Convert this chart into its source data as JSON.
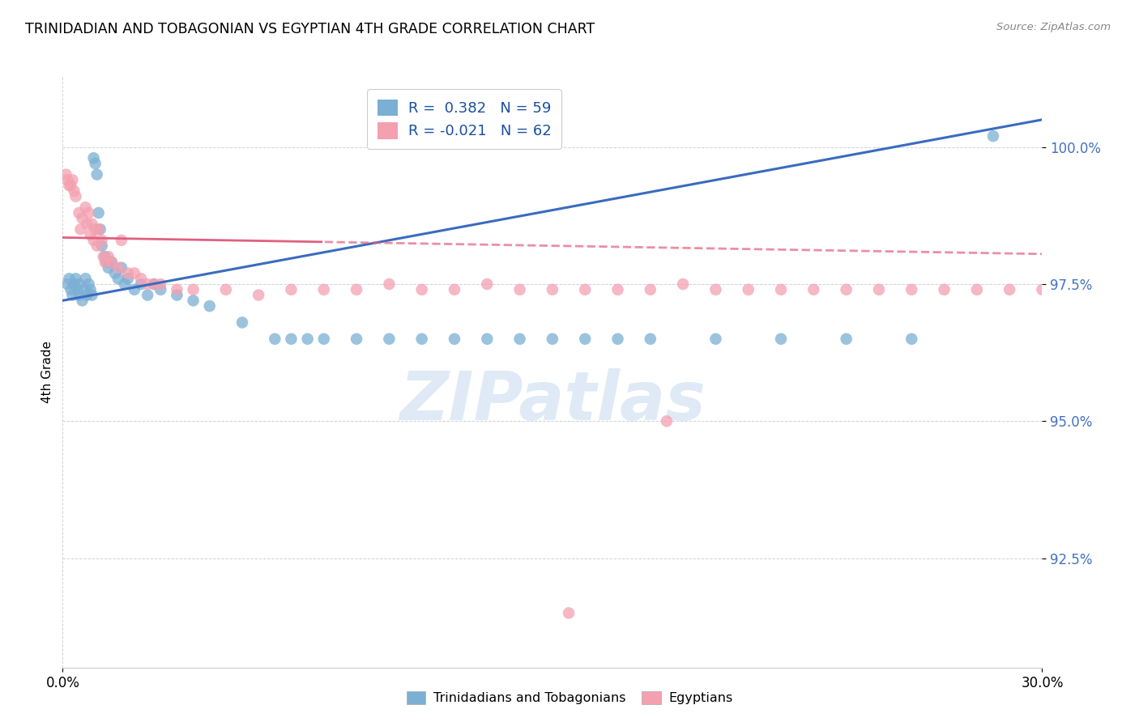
{
  "title": "TRINIDADIAN AND TOBAGONIAN VS EGYPTIAN 4TH GRADE CORRELATION CHART",
  "source": "Source: ZipAtlas.com",
  "ylabel": "4th Grade",
  "xmin": 0.0,
  "xmax": 30.0,
  "ymin": 90.5,
  "ymax": 101.3,
  "legend_r_blue": "R =  0.382",
  "legend_n_blue": "N = 59",
  "legend_r_pink": "R = -0.021",
  "legend_n_pink": "N = 62",
  "blue_color": "#7bafd4",
  "pink_color": "#f4a0b0",
  "blue_line_color": "#3a6bbf",
  "pink_line_color": "#e06080",
  "watermark_color": "#dce8f5",
  "blue_scatter_x": [
    0.15,
    0.2,
    0.25,
    0.3,
    0.35,
    0.4,
    0.45,
    0.5,
    0.5,
    0.6,
    0.65,
    0.7,
    0.75,
    0.8,
    0.85,
    0.9,
    0.95,
    1.0,
    1.05,
    1.1,
    1.15,
    1.2,
    1.3,
    1.35,
    1.4,
    1.5,
    1.6,
    1.7,
    1.8,
    1.9,
    2.0,
    2.2,
    2.4,
    2.6,
    2.8,
    3.0,
    3.5,
    4.0,
    4.5,
    5.5,
    6.5,
    7.0,
    7.5,
    8.0,
    9.0,
    10.0,
    11.0,
    12.0,
    13.0,
    14.0,
    15.0,
    16.0,
    17.0,
    18.0,
    20.0,
    22.0,
    24.0,
    26.0,
    28.5
  ],
  "blue_scatter_y": [
    97.5,
    97.6,
    97.4,
    97.3,
    97.5,
    97.6,
    97.4,
    97.5,
    97.3,
    97.2,
    97.4,
    97.6,
    97.3,
    97.5,
    97.4,
    97.3,
    99.8,
    99.7,
    99.5,
    98.8,
    98.5,
    98.2,
    98.0,
    97.9,
    97.8,
    97.9,
    97.7,
    97.6,
    97.8,
    97.5,
    97.6,
    97.4,
    97.5,
    97.3,
    97.5,
    97.4,
    97.3,
    97.2,
    97.1,
    96.8,
    96.5,
    96.5,
    96.5,
    96.5,
    96.5,
    96.5,
    96.5,
    96.5,
    96.5,
    96.5,
    96.5,
    96.5,
    96.5,
    96.5,
    96.5,
    96.5,
    96.5,
    96.5,
    100.2
  ],
  "pink_scatter_x": [
    0.1,
    0.15,
    0.2,
    0.25,
    0.3,
    0.35,
    0.4,
    0.5,
    0.55,
    0.6,
    0.7,
    0.75,
    0.8,
    0.85,
    0.9,
    0.95,
    1.0,
    1.05,
    1.1,
    1.2,
    1.25,
    1.3,
    1.4,
    1.5,
    1.7,
    1.8,
    2.0,
    2.2,
    2.4,
    2.6,
    2.8,
    3.0,
    3.5,
    4.0,
    5.0,
    6.0,
    7.0,
    8.0,
    9.0,
    10.0,
    11.0,
    12.0,
    13.0,
    14.0,
    15.0,
    16.0,
    17.0,
    18.0,
    19.0,
    20.0,
    21.0,
    22.0,
    23.0,
    24.0,
    25.0,
    26.0,
    27.0,
    28.0,
    29.0,
    30.0,
    18.5,
    15.5
  ],
  "pink_scatter_y": [
    99.5,
    99.4,
    99.3,
    99.3,
    99.4,
    99.2,
    99.1,
    98.8,
    98.5,
    98.7,
    98.9,
    98.6,
    98.8,
    98.4,
    98.6,
    98.3,
    98.5,
    98.2,
    98.5,
    98.3,
    98.0,
    97.9,
    98.0,
    97.9,
    97.8,
    98.3,
    97.7,
    97.7,
    97.6,
    97.5,
    97.5,
    97.5,
    97.4,
    97.4,
    97.4,
    97.3,
    97.4,
    97.4,
    97.4,
    97.5,
    97.4,
    97.4,
    97.5,
    97.4,
    97.4,
    97.4,
    97.4,
    97.4,
    97.5,
    97.4,
    97.4,
    97.4,
    97.4,
    97.4,
    97.4,
    97.4,
    97.4,
    97.4,
    97.4,
    97.4,
    95.0,
    91.5
  ]
}
